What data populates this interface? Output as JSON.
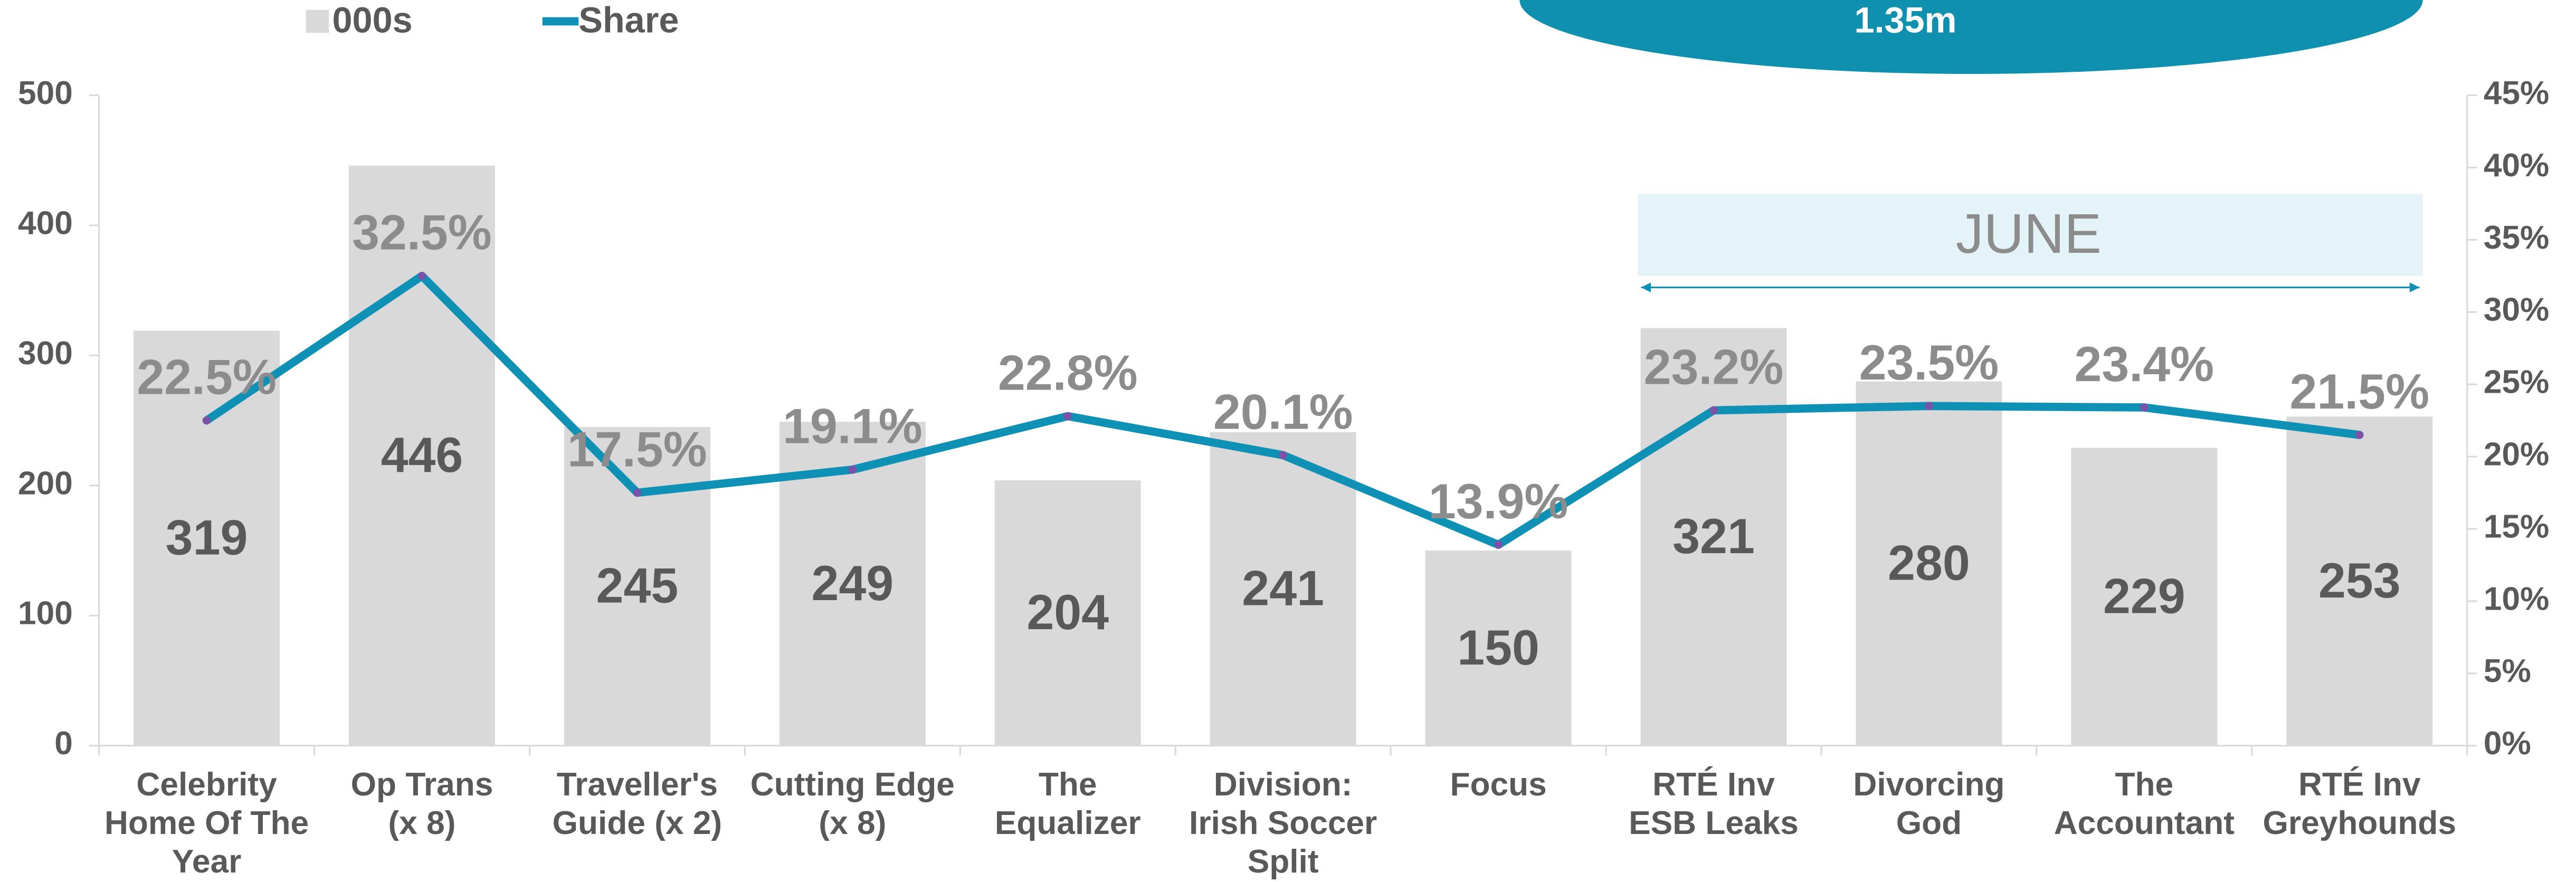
{
  "chart_data": {
    "type": "bar_line",
    "annotations": {
      "total": "1.35m",
      "period": "JUNE"
    },
    "categories": [
      [
        "Celebrity",
        "Home Of The",
        "Year"
      ],
      [
        "Op Trans",
        "(x 8)"
      ],
      [
        "Traveller's",
        "Guide (x 2)"
      ],
      [
        "Cutting Edge",
        "(x 8)"
      ],
      [
        "The",
        "Equalizer"
      ],
      [
        "Division:",
        "Irish Soccer",
        "Split"
      ],
      [
        "Focus"
      ],
      [
        "RTÉ Inv",
        "ESB Leaks"
      ],
      [
        "Divorcing",
        "God"
      ],
      [
        "The",
        "Accountant"
      ],
      [
        "RTÉ Inv",
        "Greyhounds"
      ]
    ],
    "series": [
      {
        "name": "000s",
        "color": "#d9d9d9",
        "values": [
          319,
          446,
          245,
          249,
          204,
          241,
          150,
          321,
          280,
          229,
          253
        ]
      },
      {
        "name": "Share",
        "color": "#0f90b5",
        "axis": "y2",
        "values": [
          22.5,
          32.5,
          17.5,
          19.1,
          22.8,
          20.1,
          13.9,
          23.2,
          23.5,
          23.4,
          21.5
        ],
        "value_labels": [
          "22.5%",
          "32.5%",
          "17.5%",
          "19.1%",
          "22.8%",
          "20.1%",
          "13.9%",
          "23.2%",
          "23.5%",
          "23.4%",
          "21.5%"
        ]
      }
    ],
    "ylim": [
      0,
      500
    ],
    "yticks": [
      0,
      100,
      200,
      300,
      400,
      500
    ],
    "y2lim": [
      0,
      45
    ],
    "y2ticks": [
      {
        "value": 0,
        "label": "0%"
      },
      {
        "value": 5,
        "label": "5%"
      },
      {
        "value": 10,
        "label": "10%"
      },
      {
        "value": 15,
        "label": "15%"
      },
      {
        "value": 20,
        "label": "20%"
      },
      {
        "value": 25,
        "label": "25%"
      },
      {
        "value": 30,
        "label": "30%"
      },
      {
        "value": 35,
        "label": "35%"
      },
      {
        "value": 40,
        "label": "40%"
      },
      {
        "value": 45,
        "label": "45%"
      }
    ]
  }
}
